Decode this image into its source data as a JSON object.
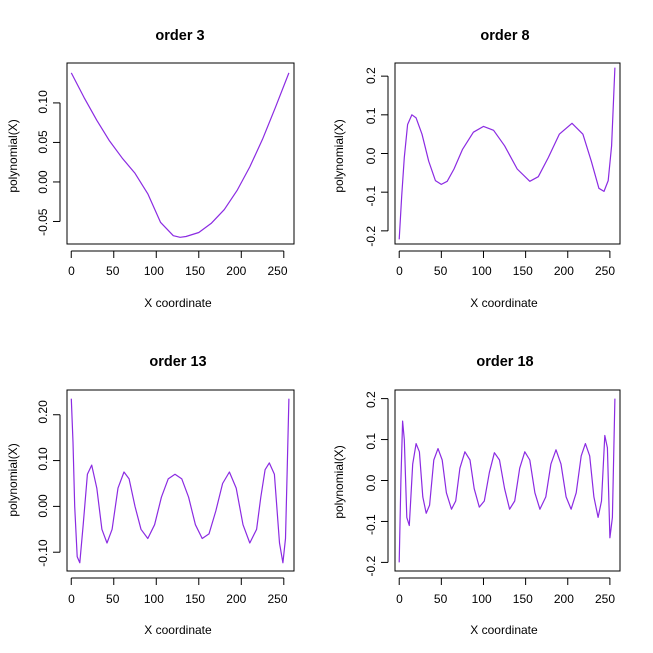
{
  "chart_data": [
    {
      "type": "line",
      "title": "order 3",
      "xlabel": "X coordinate",
      "ylabel": "polynomial(X)",
      "xlim": [
        -5,
        262
      ],
      "ylim": [
        -0.0785,
        0.1505
      ],
      "xticks": [
        0,
        50,
        100,
        150,
        200,
        250
      ],
      "yticks": [
        "-0.05",
        "0.00",
        "0.05",
        "0.10"
      ],
      "series": [
        {
          "color": "#8B2BE2",
          "x": [
            0,
            15,
            30,
            45,
            60,
            75,
            90,
            105,
            120,
            128,
            135,
            150,
            165,
            180,
            195,
            210,
            225,
            240,
            256
          ],
          "y": [
            0.138,
            0.107,
            0.078,
            0.052,
            0.03,
            0.011,
            -0.015,
            -0.051,
            -0.068,
            -0.07,
            -0.069,
            -0.064,
            -0.052,
            -0.035,
            -0.011,
            0.019,
            0.054,
            0.094,
            0.138
          ]
        }
      ]
    },
    {
      "type": "line",
      "title": "order 8",
      "xlabel": "X coordinate",
      "ylabel": "polynomial(X)",
      "xlim": [
        -5,
        262
      ],
      "ylim": [
        -0.234,
        0.234
      ],
      "xticks": [
        0,
        50,
        100,
        150,
        200,
        250
      ],
      "yticks": [
        "-0.2",
        "-0.1",
        "0.0",
        "0.1",
        "0.2"
      ],
      "series": [
        {
          "color": "#8B2BE2",
          "x": [
            0,
            3,
            6,
            10,
            15,
            20,
            27,
            35,
            43,
            50,
            57,
            65,
            75,
            88,
            100,
            112,
            125,
            140,
            155,
            165,
            177,
            190,
            205,
            218,
            228,
            237,
            243,
            248,
            252,
            256
          ],
          "y": [
            -0.222,
            -0.11,
            -0.01,
            0.075,
            0.1,
            0.092,
            0.05,
            -0.02,
            -0.07,
            -0.08,
            -0.072,
            -0.04,
            0.01,
            0.055,
            0.07,
            0.06,
            0.02,
            -0.04,
            -0.072,
            -0.06,
            -0.01,
            0.05,
            0.078,
            0.05,
            -0.02,
            -0.09,
            -0.098,
            -0.07,
            0.02,
            0.222
          ]
        }
      ]
    },
    {
      "type": "line",
      "title": "order 13",
      "xlabel": "X coordinate",
      "ylabel": "polynomial(X)",
      "xlim": [
        -5,
        262
      ],
      "ylim": [
        -0.141,
        0.254
      ],
      "xticks": [
        0,
        50,
        100,
        150,
        200,
        250
      ],
      "yticks": [
        "-0.10",
        "0.00",
        "0.10",
        "0.20"
      ],
      "series": [
        {
          "color": "#8B2BE2",
          "x": [
            0,
            2,
            4,
            7,
            10,
            14,
            19,
            24,
            30,
            36,
            42,
            48,
            55,
            62,
            68,
            75,
            82,
            90,
            98,
            106,
            114,
            122,
            130,
            138,
            146,
            154,
            162,
            170,
            178,
            186,
            194,
            202,
            210,
            218,
            223,
            228,
            233,
            239,
            245,
            249,
            252,
            254,
            256
          ],
          "y": [
            0.235,
            0.14,
            0.0,
            -0.11,
            -0.123,
            -0.04,
            0.07,
            0.09,
            0.04,
            -0.05,
            -0.08,
            -0.05,
            0.04,
            0.075,
            0.06,
            0.0,
            -0.05,
            -0.07,
            -0.04,
            0.02,
            0.06,
            0.07,
            0.06,
            0.02,
            -0.04,
            -0.07,
            -0.06,
            -0.01,
            0.05,
            0.075,
            0.04,
            -0.04,
            -0.08,
            -0.05,
            0.02,
            0.08,
            0.095,
            0.07,
            -0.08,
            -0.123,
            -0.07,
            0.08,
            0.235
          ]
        }
      ]
    },
    {
      "type": "line",
      "title": "order 18",
      "xlabel": "X coordinate",
      "ylabel": "polynomial(X)",
      "xlim": [
        -5,
        262
      ],
      "ylim": [
        -0.221,
        0.221
      ],
      "xticks": [
        0,
        50,
        100,
        150,
        200,
        250
      ],
      "yticks": [
        "-0.2",
        "-0.1",
        "0.0",
        "0.1",
        "0.2"
      ],
      "series": [
        {
          "color": "#8B2BE2",
          "x": [
            0,
            2,
            4,
            6,
            9,
            12,
            16,
            20,
            24,
            28,
            32,
            36,
            41,
            46,
            51,
            56,
            62,
            67,
            72,
            78,
            84,
            89,
            95,
            101,
            107,
            113,
            119,
            125,
            131,
            137,
            143,
            149,
            155,
            161,
            167,
            174,
            180,
            186,
            192,
            198,
            204,
            210,
            216,
            221,
            226,
            231,
            236,
            240,
            244,
            247,
            250,
            253,
            256
          ],
          "y": [
            -0.2,
            0.0,
            0.145,
            0.1,
            -0.09,
            -0.11,
            0.04,
            0.09,
            0.07,
            -0.04,
            -0.08,
            -0.06,
            0.05,
            0.078,
            0.05,
            -0.03,
            -0.07,
            -0.05,
            0.03,
            0.07,
            0.05,
            -0.02,
            -0.065,
            -0.05,
            0.02,
            0.068,
            0.05,
            -0.02,
            -0.07,
            -0.05,
            0.03,
            0.07,
            0.05,
            -0.03,
            -0.07,
            -0.04,
            0.04,
            0.075,
            0.04,
            -0.04,
            -0.07,
            -0.03,
            0.06,
            0.09,
            0.06,
            -0.04,
            -0.09,
            -0.05,
            0.11,
            0.08,
            -0.14,
            -0.09,
            0.2
          ]
        }
      ]
    }
  ]
}
